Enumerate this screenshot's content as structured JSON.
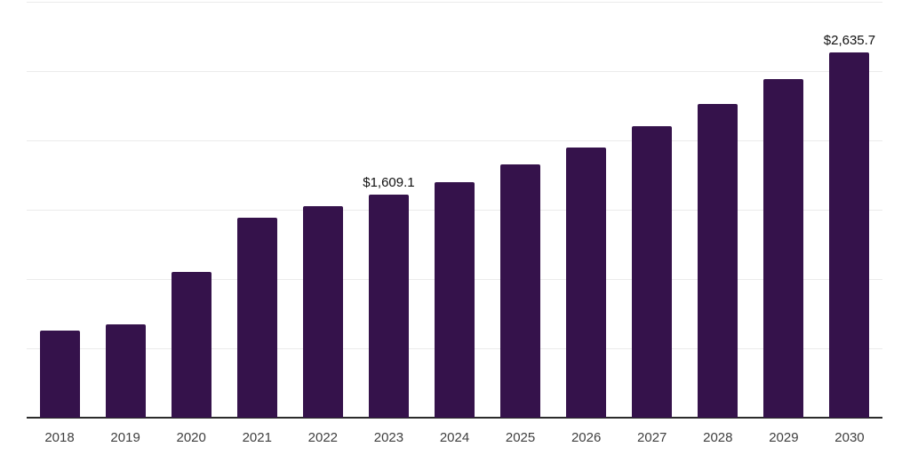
{
  "chart_data": {
    "type": "bar",
    "categories": [
      "2018",
      "2019",
      "2020",
      "2021",
      "2022",
      "2023",
      "2024",
      "2025",
      "2026",
      "2027",
      "2028",
      "2029",
      "2030"
    ],
    "values": [
      630,
      675,
      1050,
      1445,
      1525,
      1609.1,
      1700,
      1825,
      1950,
      2105,
      2260,
      2445,
      2635.7
    ],
    "title": "",
    "xlabel": "",
    "ylabel": "",
    "ylim": [
      0,
      3000
    ],
    "grid_interval": 500,
    "grid": "horizontal-only",
    "legend_position": "none",
    "y_axis_labels_visible": false,
    "data_labels": [
      {
        "category": "2023",
        "text": "$1,609.1"
      },
      {
        "category": "2030",
        "text": "$2,635.7"
      }
    ]
  },
  "colors": {
    "bar": "#35124B",
    "background": "#FFFFFF",
    "gridline": "#EBEBEB",
    "axis_line": "#2B2B2B",
    "tick_label": "#3F3F3F",
    "data_label": "#111111"
  }
}
